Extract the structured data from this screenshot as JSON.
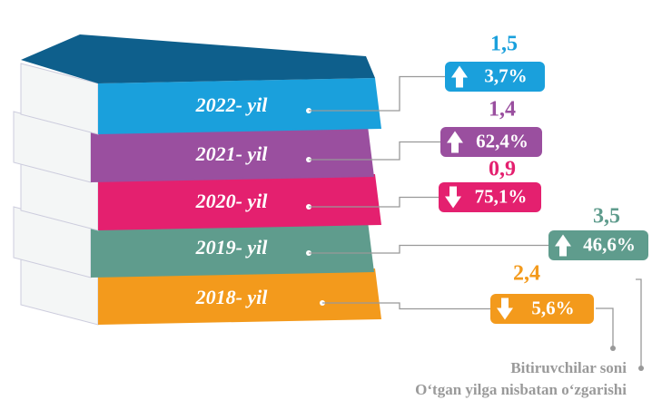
{
  "items": [
    {
      "year": "2022- yil",
      "value": "1,5",
      "change": "3,7%",
      "direction": "up",
      "color": "#1aa0dc",
      "dark": "#0e5f8c"
    },
    {
      "year": "2021- yil",
      "value": "1,4",
      "change": "62,4%",
      "direction": "up",
      "color": "#9a4f9f",
      "dark": "#6b2f72"
    },
    {
      "year": "2020- yil",
      "value": "0,9",
      "change": "75,1%",
      "direction": "down",
      "color": "#e4206f",
      "dark": "#a3134c"
    },
    {
      "year": "2019- yil",
      "value": "3,5",
      "change": "46,6%",
      "direction": "up",
      "color": "#5f9c8d",
      "dark": "#3d6d61"
    },
    {
      "year": "2018- yil",
      "value": "2,4",
      "change": "5,6%",
      "direction": "down",
      "color": "#f39a1c",
      "dark": "#b86e0c"
    }
  ],
  "legend": {
    "value": "Bitiruvchilar soni",
    "change": "O‘tgan yilga nisbatan o‘zgarishi"
  }
}
